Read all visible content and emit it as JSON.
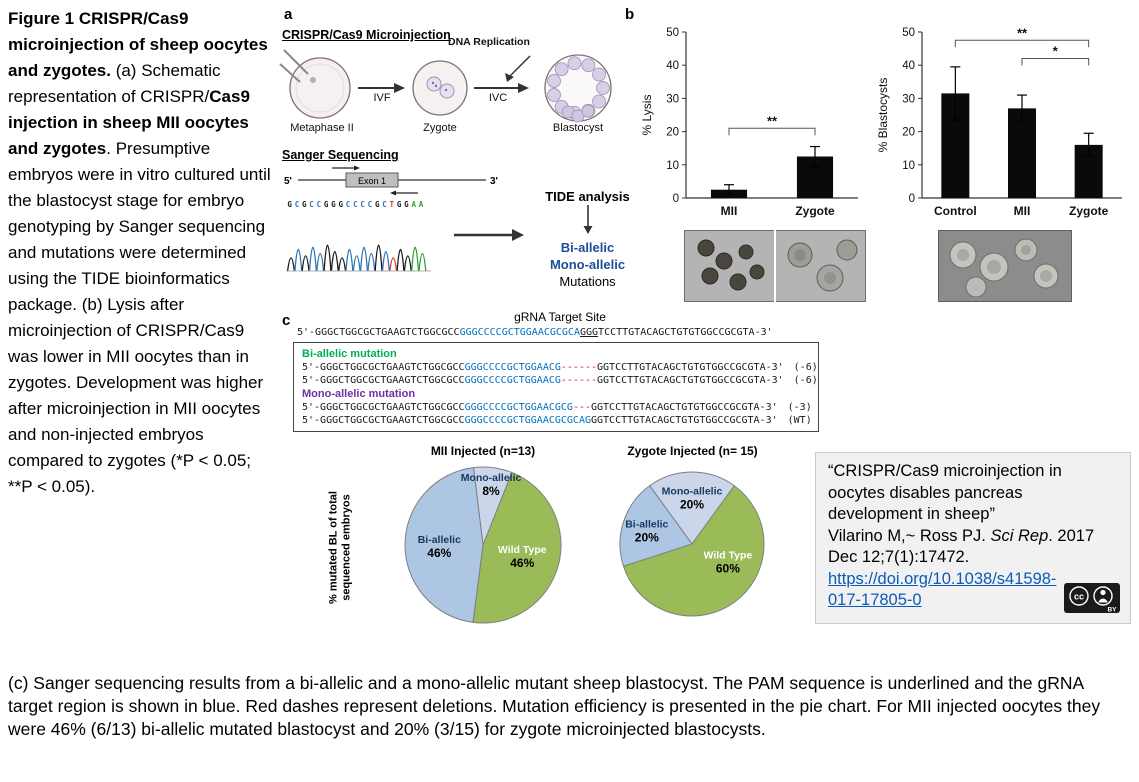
{
  "left_caption": {
    "title": "Figure 1  CRISPR/Cas9 microinjection of sheep oocytes and zygotes.",
    "seg_regular_1": " (a) Schematic representation of CRISPR/",
    "seg_bold": "Cas9 injection in sheep MII oocytes and zygotes",
    "seg_regular_2": ". Presumptive embryos were in vitro cultured until the blastocyst stage for embryo genotyping by Sanger sequencing and mutations were determined using the TIDE bioinformatics package. (b) Lysis after microinjection of CRISPR/Cas9 was lower in MII oocytes than in zygotes. Development was higher after microinjection in MII oocytes and non-injected embryos compared to zygotes (*P < 0.05; **P < 0.05)."
  },
  "panel_a": {
    "label": "a",
    "microinjection_title": "CRISPR/Cas9 Microinjection",
    "stage_labels": {
      "oocyte": "Metaphase II",
      "zygote": "Zygote",
      "blastocyst": "Blastocyst"
    },
    "arrow_labels": {
      "ivf": "IVF",
      "ivc": "IVC",
      "dna": "DNA Replication"
    },
    "sanger_title": "Sanger Sequencing",
    "five_prime": "5'",
    "three_prime": "3'",
    "exon_label": "Exon 1",
    "seq_letters": "GCGCCGGGCCCCGCTGGAA",
    "tide": {
      "title": "TIDE analysis",
      "line1": "Bi-allelic",
      "line2": "Mono-allelic",
      "line3": "Mutations"
    }
  },
  "panel_b": {
    "label": "b"
  },
  "panel_c": {
    "label": "c",
    "grna_title": "gRNA Target Site",
    "target": {
      "pre": "5'-GGGCTGGCGCTGAAGTCTGGCGCC",
      "blue": "GGGCCCCGCTGGAACGCGCA",
      "pam": "GGG",
      "post": "TCCTTGTACAGCTGTGTGGCCGCGTA-3'"
    },
    "biallelic_header": "Bi-allelic mutation",
    "monoallelic_header": "Mono-allelic mutation",
    "mut_lines": [
      {
        "pre": "5'-GGGCTGGCGCTGAAGTCTGGCGCC",
        "blue": "GGGCCCCGCTGGAACG",
        "red": "------",
        "post": "GGTCCTTGTACAGCTGTGTGGCCGCGTA-3'",
        "tag": "(-6)"
      },
      {
        "pre": "5'-GGGCTGGCGCTGAAGTCTGGCGCC",
        "blue": "GGGCCCCGCTGGAACG",
        "red": "------",
        "post": "GGTCCTTGTACAGCTGTGTGGCCGCGTA-3'",
        "tag": "(-6)"
      },
      {
        "pre": "5'-GGGCTGGCGCTGAAGTCTGGCGCC",
        "blue": "GGGCCCCGCTGGAACGCG",
        "red": "---",
        "post": "GGTCCTTGTACAGCTGTGTGGCCGCGTA-3'",
        "tag": "(-3)"
      },
      {
        "pre": "5'-GGGCTGGCGCTGAAGTCTGGCGCC",
        "blue": "GGGCCCCGCTGGAACGCGCAG",
        "red": "",
        "post": "GGTCCTTGTACAGCTGTGTGGCCGCGTA-3'",
        "tag": "(WT)"
      }
    ],
    "pie_axis_label": "% mutated BL of total sequenced embryos"
  },
  "citation": {
    "title": "“CRISPR/Cas9 microinjection in oocytes disables pancreas development in sheep”",
    "authors": "Vilarino M,~ Ross PJ. ",
    "journal": "Sci Rep",
    "detail": ". 2017 Dec 12;7(1):17472.",
    "doi": "https://doi.org/10.1038/s41598-017-17805-0",
    "badge_cc": "cc",
    "badge_by": "BY"
  },
  "bottom_caption": "(c) Sanger sequencing results from a bi-allelic and a mono-allelic mutant sheep blastocyst. The PAM sequence is underlined and the gRNA target region is shown in blue. Red dashes represent deletions. Mutation efficiency is presented in the pie chart. For MII injected oocytes they were 46% (6/13) bi-allelic mutated blastocyst and 20% (3/15) for zygote microinjected blastocysts.",
  "colors": {
    "sequence_blue": "#0070c0",
    "deletion_red": "#ff0000",
    "biallelic_header_green": "#00b050",
    "monoallelic_header_purple": "#7030a0",
    "link_blue": "#0b5bbb",
    "base_colors": {
      "G": "#1a1a1a",
      "C": "#2e75b6",
      "A": "#2fa02f",
      "T": "#d23b3b"
    }
  },
  "chart_data": [
    {
      "id": "lysis",
      "type": "bar",
      "title": "",
      "ylabel": "% Lysis",
      "xlabel": "",
      "categories": [
        "MII",
        "Zygote"
      ],
      "values": [
        2.5,
        12.5
      ],
      "errors": [
        1.5,
        3
      ],
      "ylim": [
        0,
        50
      ],
      "yticks": [
        0,
        10,
        20,
        30,
        40,
        50
      ],
      "bar_color": "#0a0a0a",
      "grid": false,
      "significance": [
        {
          "from": 0,
          "to": 1,
          "label": "**",
          "y": 21
        }
      ]
    },
    {
      "id": "blastocysts",
      "type": "bar",
      "title": "",
      "ylabel": "% Blastocysts",
      "xlabel": "",
      "categories": [
        "Control",
        "MII",
        "Zygote"
      ],
      "values": [
        31.5,
        27,
        16
      ],
      "errors": [
        8,
        4,
        3.5
      ],
      "ylim": [
        0,
        50
      ],
      "yticks": [
        0,
        10,
        20,
        30,
        40,
        50
      ],
      "bar_color": "#0a0a0a",
      "grid": false,
      "significance": [
        {
          "from": 0,
          "to": 2,
          "label": "**",
          "y": 47.5
        },
        {
          "from": 1,
          "to": 2,
          "label": "*",
          "y": 42
        }
      ]
    },
    {
      "id": "pie_mii",
      "type": "pie",
      "title": "MII Injected (n=13)",
      "start_deg": -97,
      "radius": 78,
      "slices": [
        {
          "label": "Mono-allelic",
          "pct": 8,
          "color": "#ccd6eb",
          "label_color": "#17375e",
          "label_r": 0.8
        },
        {
          "label": "Wild Type",
          "pct": 46,
          "color": "#9bbb59",
          "label_color": "#ffffff",
          "label_r": 0.52
        },
        {
          "label": "Bi-allelic",
          "pct": 46,
          "color": "#adc6e3",
          "label_color": "#17375e",
          "label_r": 0.56
        }
      ]
    },
    {
      "id": "pie_zygote",
      "type": "pie",
      "title": "Zygote Injected  (n= 15)",
      "start_deg": -126,
      "radius": 72,
      "slices": [
        {
          "label": "Mono-allelic",
          "pct": 20,
          "color": "#ccd6eb",
          "label_color": "#17375e",
          "label_r": 0.66
        },
        {
          "label": "Wild Type",
          "pct": 60,
          "color": "#9bbb59",
          "label_color": "#ffffff",
          "label_deg": 25,
          "label_r": 0.55
        },
        {
          "label": "Bi-allelic",
          "pct": 20,
          "color": "#adc6e3",
          "label_color": "#17375e",
          "label_r": 0.66
        }
      ]
    }
  ]
}
